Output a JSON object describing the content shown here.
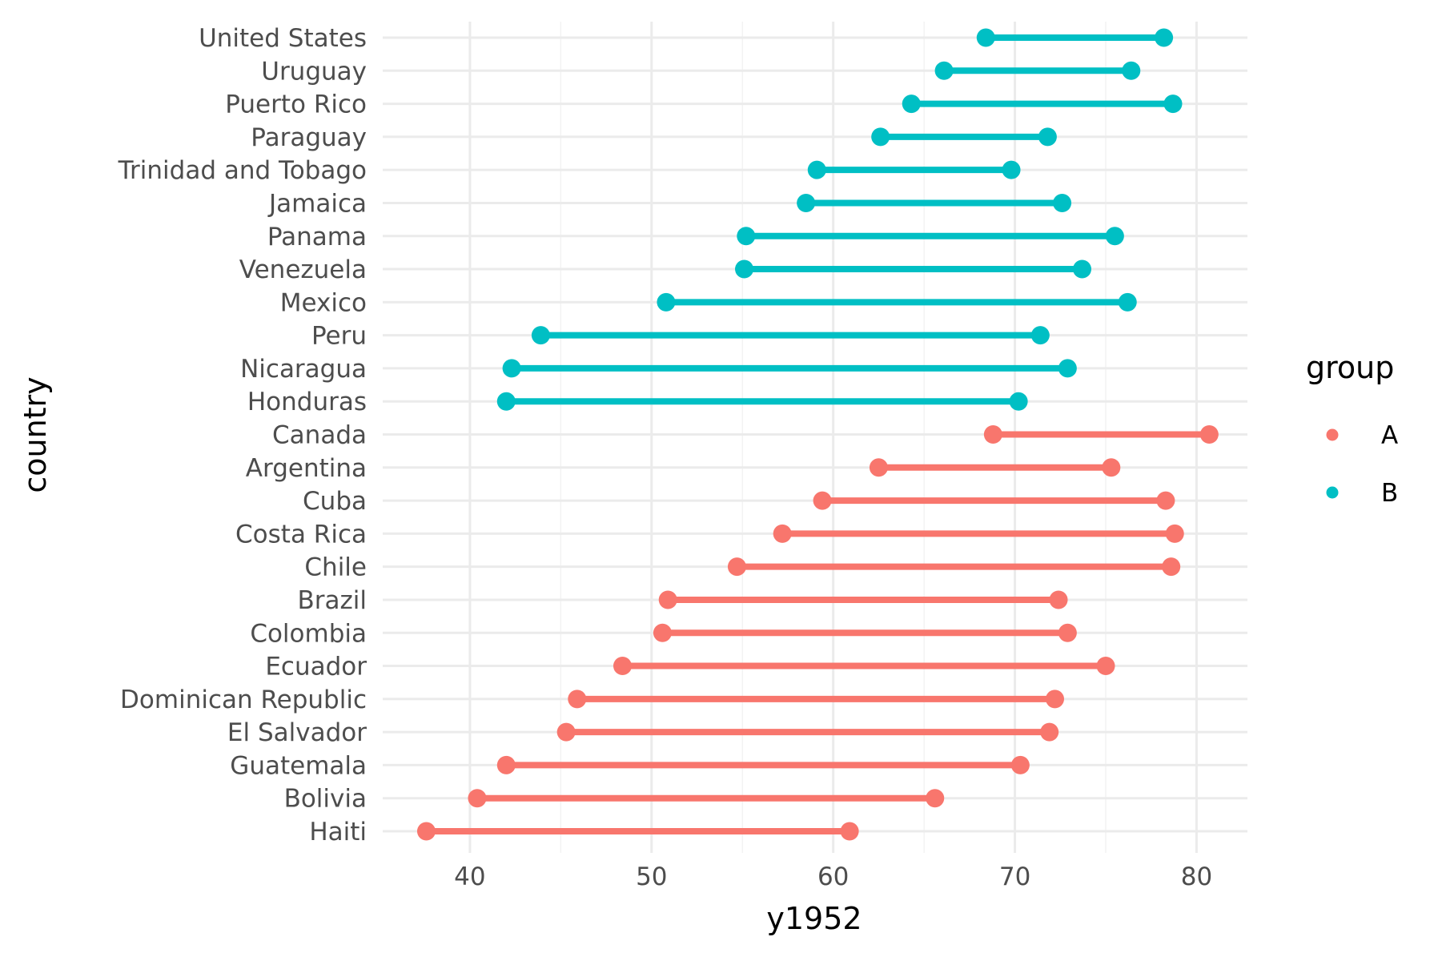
{
  "chart_data": {
    "type": "dumbbell",
    "xlabel": "y1952",
    "ylabel": "country",
    "xlim": [
      35.2,
      82.8
    ],
    "x_ticks": [
      40,
      50,
      60,
      70,
      80
    ],
    "x_minor_ticks": [
      45,
      55,
      65,
      75
    ],
    "grid": true,
    "legend": {
      "title": "group",
      "position": "right",
      "entries": [
        {
          "name": "A",
          "color": "#F8766D"
        },
        {
          "name": "B",
          "color": "#00BFC4"
        }
      ]
    },
    "rows": [
      {
        "country": "United States",
        "group": "B",
        "y1952": 68.4,
        "y2007": 78.2
      },
      {
        "country": "Uruguay",
        "group": "B",
        "y1952": 66.1,
        "y2007": 76.4
      },
      {
        "country": "Puerto Rico",
        "group": "B",
        "y1952": 64.3,
        "y2007": 78.7
      },
      {
        "country": "Paraguay",
        "group": "B",
        "y1952": 62.6,
        "y2007": 71.8
      },
      {
        "country": "Trinidad and Tobago",
        "group": "B",
        "y1952": 59.1,
        "y2007": 69.8
      },
      {
        "country": "Jamaica",
        "group": "B",
        "y1952": 58.5,
        "y2007": 72.6
      },
      {
        "country": "Panama",
        "group": "B",
        "y1952": 55.2,
        "y2007": 75.5
      },
      {
        "country": "Venezuela",
        "group": "B",
        "y1952": 55.1,
        "y2007": 73.7
      },
      {
        "country": "Mexico",
        "group": "B",
        "y1952": 50.8,
        "y2007": 76.2
      },
      {
        "country": "Peru",
        "group": "B",
        "y1952": 43.9,
        "y2007": 71.4
      },
      {
        "country": "Nicaragua",
        "group": "B",
        "y1952": 42.3,
        "y2007": 72.9
      },
      {
        "country": "Honduras",
        "group": "B",
        "y1952": 42.0,
        "y2007": 70.2
      },
      {
        "country": "Canada",
        "group": "A",
        "y1952": 68.8,
        "y2007": 80.7
      },
      {
        "country": "Argentina",
        "group": "A",
        "y1952": 62.5,
        "y2007": 75.3
      },
      {
        "country": "Cuba",
        "group": "A",
        "y1952": 59.4,
        "y2007": 78.3
      },
      {
        "country": "Costa Rica",
        "group": "A",
        "y1952": 57.2,
        "y2007": 78.8
      },
      {
        "country": "Chile",
        "group": "A",
        "y1952": 54.7,
        "y2007": 78.6
      },
      {
        "country": "Brazil",
        "group": "A",
        "y1952": 50.9,
        "y2007": 72.4
      },
      {
        "country": "Colombia",
        "group": "A",
        "y1952": 50.6,
        "y2007": 72.9
      },
      {
        "country": "Ecuador",
        "group": "A",
        "y1952": 48.4,
        "y2007": 75.0
      },
      {
        "country": "Dominican Republic",
        "group": "A",
        "y1952": 45.9,
        "y2007": 72.2
      },
      {
        "country": "El Salvador",
        "group": "A",
        "y1952": 45.3,
        "y2007": 71.9
      },
      {
        "country": "Guatemala",
        "group": "A",
        "y1952": 42.0,
        "y2007": 70.3
      },
      {
        "country": "Bolivia",
        "group": "A",
        "y1952": 40.4,
        "y2007": 65.6
      },
      {
        "country": "Haiti",
        "group": "A",
        "y1952": 37.6,
        "y2007": 60.9
      }
    ]
  }
}
